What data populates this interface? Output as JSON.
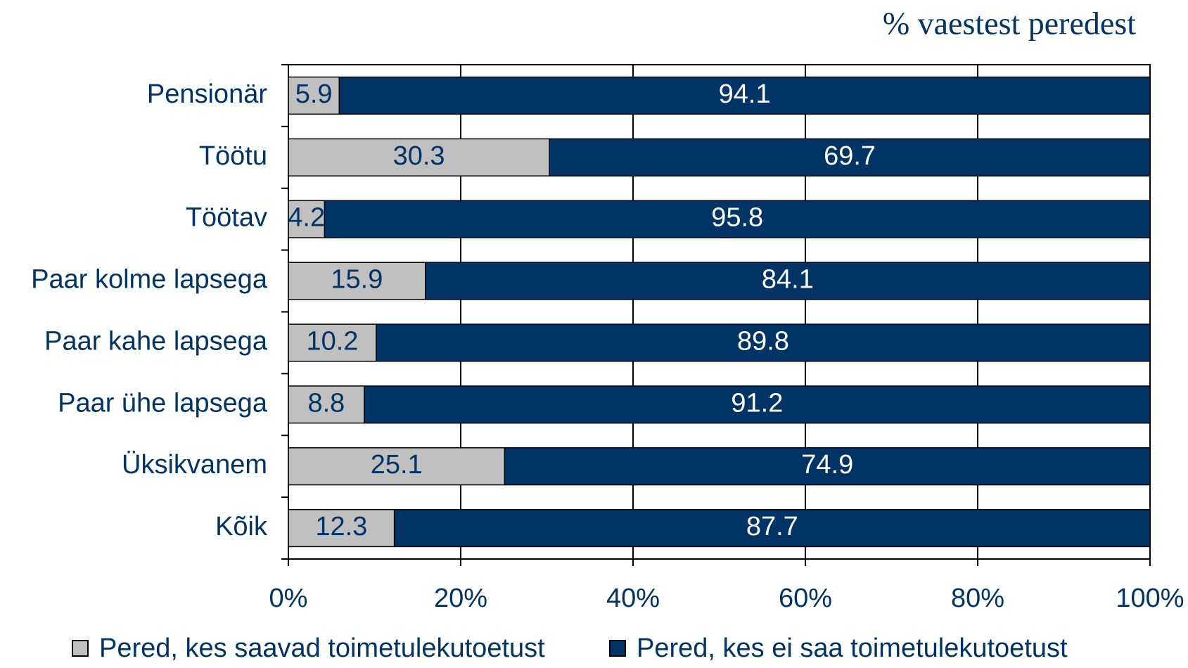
{
  "chart_data": {
    "type": "stacked-bar-horizontal",
    "title": "% vaestest peredest",
    "categories": [
      "Pensionär",
      "Töötu",
      "Töötav",
      "Paar kolme lapsega",
      "Paar kahe lapsega",
      "Paar ühe lapsega",
      "Üksikvanem",
      "Kõik"
    ],
    "series": [
      {
        "name": "Pered, kes saavad toimetulekutoetust",
        "color": "#c0c0c0",
        "values": [
          5.9,
          30.3,
          4.2,
          15.9,
          10.2,
          8.8,
          25.1,
          12.3
        ]
      },
      {
        "name": "Pered, kes ei saa toimetulekutoetust",
        "color": "#003366",
        "values": [
          94.1,
          69.7,
          95.8,
          84.1,
          89.8,
          91.2,
          74.9,
          87.7
        ]
      }
    ],
    "xlim": [
      0,
      100
    ],
    "xticks": [
      {
        "value": 0,
        "label": "0%"
      },
      {
        "value": 20,
        "label": "20%"
      },
      {
        "value": 40,
        "label": "40%"
      },
      {
        "value": 60,
        "label": "60%"
      },
      {
        "value": 80,
        "label": "80%"
      },
      {
        "value": 100,
        "label": "100%"
      }
    ],
    "grid": true,
    "legend": "bottom"
  }
}
